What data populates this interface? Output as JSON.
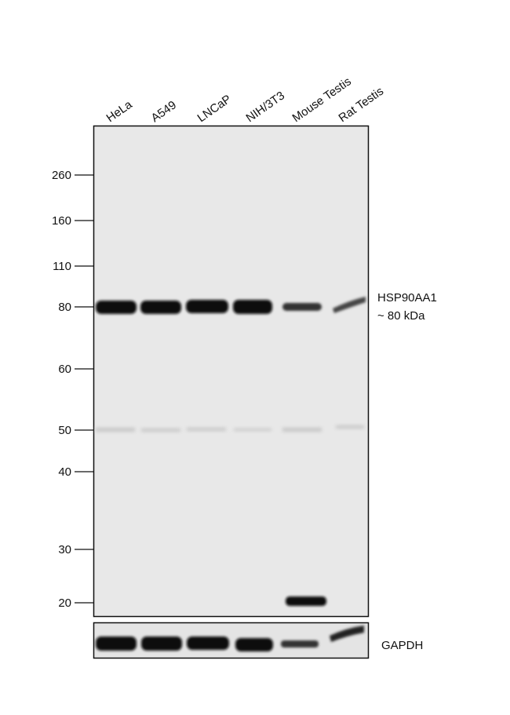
{
  "lanes": [
    "HeLa",
    "A549",
    "LNCaP",
    "NIH/3T3",
    "Mouse Testis",
    "Rat Testis"
  ],
  "markers": [
    "260",
    "160",
    "110",
    "80",
    "60",
    "50",
    "40",
    "30",
    "20"
  ],
  "target": {
    "name": "HSP90AA1",
    "size": "~ 80 kDa"
  },
  "loading_control": "GAPDH"
}
